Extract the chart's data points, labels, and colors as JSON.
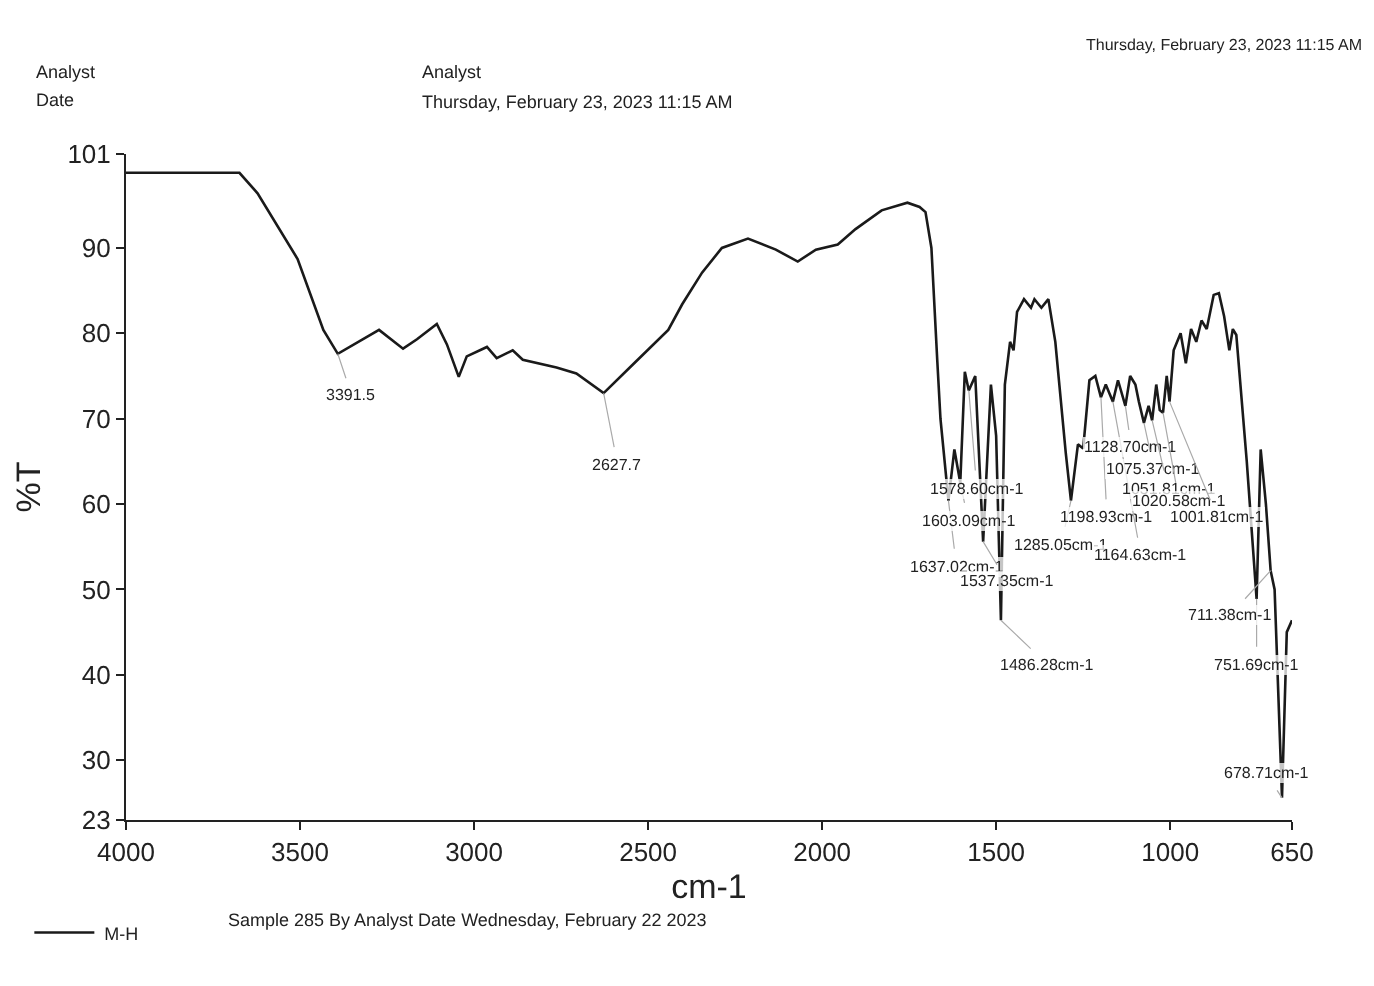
{
  "chart_data": {
    "type": "line",
    "xlabel": "cm-1",
    "ylabel": "%T",
    "xlim": [
      4000,
      650
    ],
    "ylim": [
      23,
      101
    ],
    "xticks": [
      4000,
      3500,
      3000,
      2500,
      2000,
      1500,
      1000,
      650
    ],
    "yticks": [
      23,
      30,
      40,
      50,
      60,
      70,
      80,
      90,
      101
    ],
    "grid": false,
    "legend": "bottom left",
    "marker": "none",
    "line_style": "solid",
    "series": [
      {
        "name": "M-H",
        "color": "#1a1a1a",
        "x": [
          4000,
          3674,
          3622,
          3507,
          3433,
          3391.5,
          3273,
          3204,
          3164,
          3107,
          3078,
          3044,
          3021,
          2963,
          2935,
          2889,
          2860,
          2763,
          2706,
          2627.7,
          2540,
          2442,
          2402,
          2345,
          2288,
          2213,
          2133,
          2070,
          2018,
          1955,
          1904,
          1829,
          1755,
          1720,
          1703,
          1686,
          1669,
          1660,
          1637.02,
          1620,
          1603.09,
          1590,
          1578.6,
          1560,
          1537.35,
          1515,
          1500,
          1486.28,
          1475,
          1460,
          1450,
          1440,
          1420,
          1400,
          1390,
          1370,
          1350,
          1330,
          1300,
          1285.05,
          1265,
          1250,
          1232,
          1215,
          1198.93,
          1185,
          1175,
          1164.63,
          1150,
          1128.7,
          1115,
          1100,
          1090,
          1075.37,
          1062,
          1051.81,
          1040,
          1030,
          1020.58,
          1010,
          1001.81,
          990,
          970,
          955,
          940,
          925,
          910,
          895,
          875,
          860,
          845,
          830,
          820,
          810,
          780,
          751.69,
          740,
          725,
          711.38,
          700,
          678.71,
          665,
          650
        ],
        "values": [
          98.8,
          98.8,
          96.4,
          88.7,
          80.4,
          77.6,
          80.4,
          78.2,
          79.3,
          81.1,
          78.7,
          74.9,
          77.3,
          78.4,
          77.1,
          78.0,
          76.9,
          76.0,
          75.3,
          73.0,
          76.5,
          80.4,
          83.4,
          87.1,
          90,
          91.1,
          89.8,
          88.4,
          89.8,
          90.4,
          92.2,
          94.4,
          95.3,
          94.8,
          94.2,
          90,
          76.7,
          70,
          60.4,
          66.4,
          62.5,
          75.5,
          73.3,
          75,
          55.6,
          74,
          68,
          46.4,
          74,
          79,
          78,
          82.5,
          84,
          83,
          84,
          83,
          84,
          79,
          66,
          60.4,
          67,
          66.5,
          74.5,
          75,
          72.5,
          74,
          73,
          72,
          74.5,
          71.5,
          75,
          74,
          72,
          69.5,
          71.5,
          69.8,
          74,
          71,
          70.7,
          75,
          72,
          78,
          80,
          76.5,
          80.5,
          79,
          81.5,
          80.5,
          84.5,
          84.7,
          82,
          78,
          80.5,
          79.8,
          65,
          48.9,
          66.4,
          60,
          52.2,
          50,
          25.6,
          45,
          46.4
        ]
      }
    ],
    "annotations": [
      "Analyst",
      "Date",
      "Analyst",
      "Thursday, February 23, 2023 11:15 AM",
      "Thursday, February 23, 2023 11:15 AM",
      "Sample 285 By Analyst Date Wednesday, February 22 2023",
      {
        "text": "3391.5",
        "x": 3391.5,
        "y": 77.6
      },
      {
        "text": "2627.7",
        "x": 2627.7,
        "y": 73.0
      },
      {
        "text": "1637.02cm-1",
        "x": 1637.02,
        "y": 60.4
      },
      {
        "text": "1603.09cm-1",
        "x": 1603.09,
        "y": 62.5
      },
      {
        "text": "1578.60cm-1",
        "x": 1578.6,
        "y": 73.3
      },
      {
        "text": "1537.35cm-1",
        "x": 1537.35,
        "y": 55.6
      },
      {
        "text": "1486.28cm-1",
        "x": 1486.28,
        "y": 46.4
      },
      {
        "text": "1285.05cm-1",
        "x": 1285.05,
        "y": 60.4
      },
      {
        "text": "1198.93cm-1",
        "x": 1198.93,
        "y": 72.5
      },
      {
        "text": "1164.63cm-1",
        "x": 1164.63,
        "y": 72
      },
      {
        "text": "1128.70cm-1",
        "x": 1128.7,
        "y": 71.5
      },
      {
        "text": "1075.37cm-1",
        "x": 1075.37,
        "y": 69.5
      },
      {
        "text": "1051.81cm-1",
        "x": 1051.81,
        "y": 69.8
      },
      {
        "text": "1020.58cm-1",
        "x": 1020.58,
        "y": 70.7
      },
      {
        "text": "1001.81cm-1",
        "x": 1001.81,
        "y": 72
      },
      {
        "text": "751.69cm-1",
        "x": 751.69,
        "y": 48.9
      },
      {
        "text": "711.38cm-1",
        "x": 711.38,
        "y": 52.2
      },
      {
        "text": "678.71cm-1",
        "x": 678.71,
        "y": 25.6
      }
    ]
  }
}
